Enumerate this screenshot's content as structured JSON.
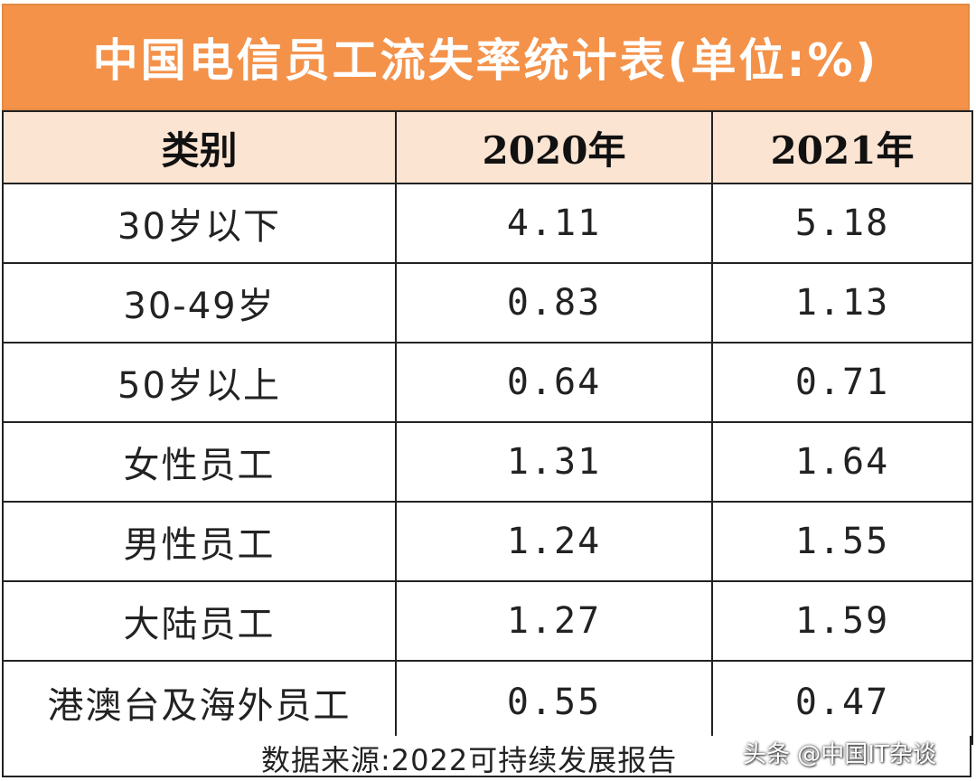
{
  "title": "中国电信员工流失率统计表(单位:%)",
  "header": {
    "category": "类别",
    "year_2020": "2020年",
    "year_2021": "2021年"
  },
  "rows": [
    {
      "category": "30岁以下",
      "y2020": "4.11",
      "y2021": "5.18"
    },
    {
      "category": "30-49岁",
      "y2020": "0.83",
      "y2021": "1.13"
    },
    {
      "category": "50岁以上",
      "y2020": "0.64",
      "y2021": "0.71"
    },
    {
      "category": "女性员工",
      "y2020": "1.31",
      "y2021": "1.64"
    },
    {
      "category": "男性员工",
      "y2020": "1.24",
      "y2021": "1.55"
    },
    {
      "category": "大陆员工",
      "y2020": "1.27",
      "y2021": "1.59"
    },
    {
      "category": "港澳台及海外员工",
      "y2020": "0.55",
      "y2021": "0.47"
    }
  ],
  "source": "数据来源:2022可持续发展报告",
  "watermark": "头条 @中国IT杂谈",
  "colors": {
    "title_background": "#f4924a",
    "title_text": "#ffffff",
    "header_background": "#fce4d2",
    "border": "#222222"
  }
}
